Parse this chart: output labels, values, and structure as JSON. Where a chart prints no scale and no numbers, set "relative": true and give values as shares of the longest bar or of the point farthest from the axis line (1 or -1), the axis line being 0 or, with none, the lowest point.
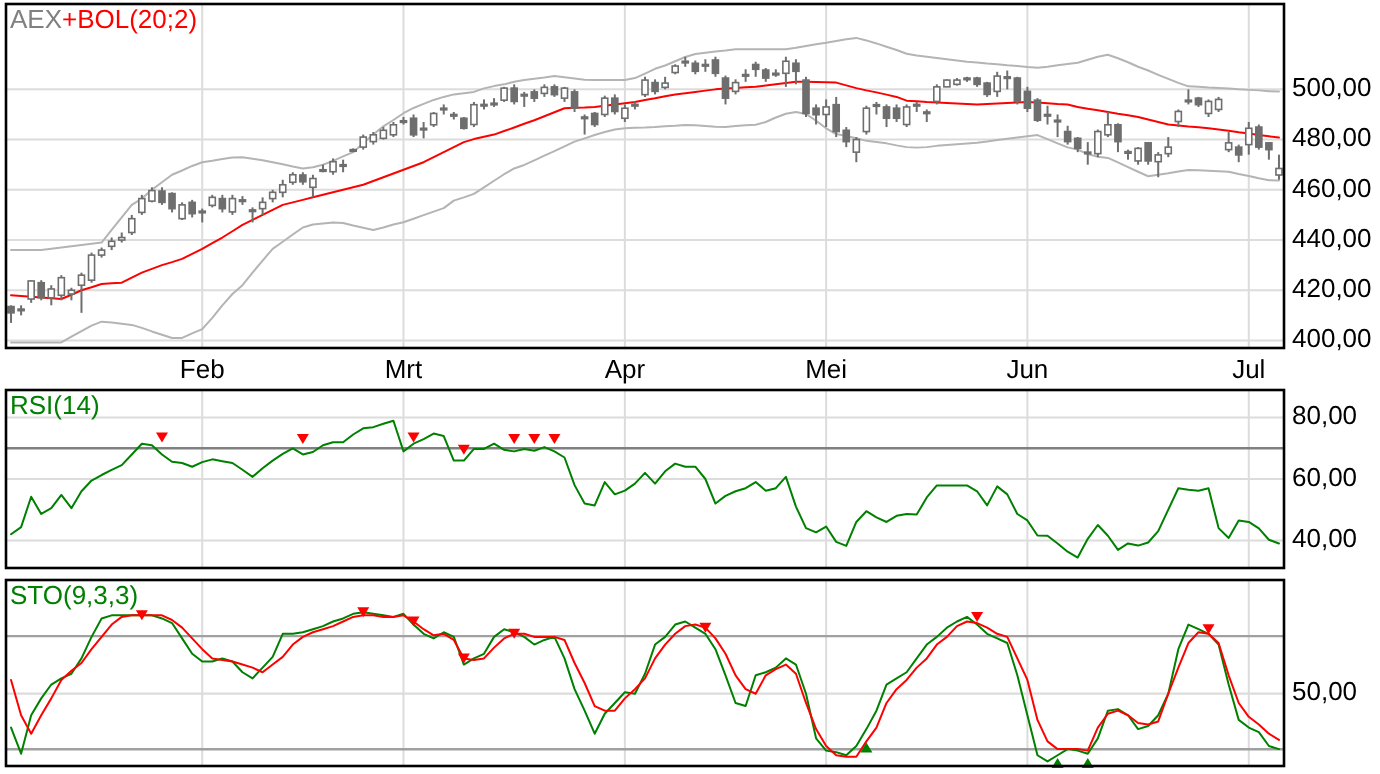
{
  "chart_data": [
    {
      "type": "candlestick",
      "title": "AEX",
      "legend": "top left",
      "grid": true,
      "categories": [
        null,
        null,
        null,
        null,
        null,
        null,
        null,
        null,
        null,
        null,
        null,
        null,
        null,
        null,
        null,
        null,
        null,
        null,
        null,
        "Feb",
        null,
        null,
        null,
        null,
        null,
        null,
        null,
        null,
        null,
        null,
        null,
        null,
        null,
        null,
        null,
        null,
        null,
        null,
        null,
        "Mrt",
        null,
        null,
        null,
        null,
        null,
        null,
        null,
        null,
        null,
        null,
        null,
        null,
        null,
        null,
        null,
        null,
        null,
        null,
        null,
        null,
        null,
        "Apr",
        null,
        null,
        null,
        null,
        null,
        null,
        null,
        null,
        null,
        null,
        null,
        null,
        null,
        null,
        null,
        null,
        null,
        null,
        null,
        "Mei",
        null,
        null,
        null,
        null,
        null,
        null,
        null,
        null,
        null,
        null,
        null,
        null,
        null,
        null,
        null,
        null,
        null,
        null,
        null,
        "Jun",
        null,
        null,
        null,
        null,
        null,
        null,
        null,
        null,
        null,
        null,
        null,
        null,
        null,
        null,
        null,
        null,
        null,
        null,
        null,
        null,
        null,
        "Jul",
        null,
        null,
        null
      ],
      "ylim": [
        397,
        534
      ],
      "yticks": [
        {
          "value": 400,
          "label": "400,00"
        },
        {
          "value": 420,
          "label": "420,00"
        },
        {
          "value": 440,
          "label": "440,00"
        },
        {
          "value": 460,
          "label": "460,00"
        },
        {
          "value": 480,
          "label": "480,00"
        },
        {
          "value": 500,
          "label": "500,00"
        }
      ],
      "ohlc": [
        [
          413.5,
          414,
          407,
          411
        ],
        [
          412,
          414,
          410,
          412.5
        ],
        [
          416.5,
          424,
          415,
          423.7
        ],
        [
          423,
          424,
          416,
          417
        ],
        [
          417,
          422,
          414,
          420.5
        ],
        [
          418,
          426,
          416,
          425
        ],
        [
          418.5,
          421,
          416,
          420
        ],
        [
          422,
          427,
          411,
          426
        ],
        [
          424,
          435,
          423,
          434
        ],
        [
          434,
          437,
          433,
          436
        ],
        [
          437.5,
          441,
          436,
          439.5
        ],
        [
          440,
          443,
          439,
          441
        ],
        [
          443,
          450,
          442,
          448.5
        ],
        [
          451,
          458,
          450,
          456.5
        ],
        [
          455.5,
          461,
          455,
          459.7
        ],
        [
          459.5,
          461,
          454,
          455
        ],
        [
          458.5,
          459,
          451,
          452.5
        ],
        [
          448.5,
          455,
          448,
          454
        ],
        [
          455,
          456,
          449,
          450.5
        ],
        [
          451,
          452.5,
          447,
          451.5
        ],
        [
          453.8,
          458,
          453,
          457
        ],
        [
          456.5,
          458,
          451,
          452.5
        ],
        [
          451.2,
          458,
          450,
          456.5
        ],
        [
          456,
          457.5,
          454,
          456
        ],
        [
          452,
          453,
          447,
          451.5
        ],
        [
          452.5,
          457,
          450,
          455
        ],
        [
          456.5,
          460,
          455,
          459
        ],
        [
          459,
          464,
          457,
          462
        ],
        [
          463,
          467,
          462,
          466
        ],
        [
          465.9,
          467,
          462,
          463.2
        ],
        [
          461,
          466,
          457,
          464.5
        ],
        [
          468,
          470,
          467,
          468
        ],
        [
          467.2,
          472.5,
          466,
          471.2
        ],
        [
          469.5,
          472,
          467,
          470
        ],
        [
          476,
          476.5,
          475,
          476
        ],
        [
          477,
          482,
          476,
          481
        ],
        [
          479.2,
          483,
          478,
          481.9
        ],
        [
          480.5,
          485,
          480,
          483.7
        ],
        [
          481.9,
          487,
          481,
          485.9
        ],
        [
          487,
          489,
          486,
          487.5
        ],
        [
          488.5,
          490,
          481,
          481.9
        ],
        [
          484.5,
          487,
          480.5,
          484.5
        ],
        [
          485.9,
          491,
          485,
          490.4
        ],
        [
          492.5,
          494,
          490,
          492.5
        ],
        [
          489.5,
          491,
          488,
          490
        ],
        [
          488.5,
          489,
          484,
          484.5
        ],
        [
          486,
          495,
          485,
          493.9
        ],
        [
          493.5,
          496,
          492,
          494
        ],
        [
          494.5,
          496.5,
          493,
          494.5
        ],
        [
          495.7,
          501,
          495,
          500.5
        ],
        [
          500.5,
          502,
          494,
          495.2
        ],
        [
          498,
          499,
          493,
          497.9
        ],
        [
          499,
          500,
          495,
          496.5
        ],
        [
          498.4,
          502,
          497,
          500.8
        ],
        [
          501,
          502,
          497,
          497.9
        ],
        [
          496.5,
          501,
          495,
          500.5
        ],
        [
          499,
          500,
          491,
          492.5
        ],
        [
          489,
          490,
          482,
          488.5
        ],
        [
          490.4,
          491,
          485,
          486
        ],
        [
          490,
          497.5,
          489,
          496.5
        ],
        [
          496.5,
          498,
          490,
          491.2
        ],
        [
          488.5,
          494,
          487,
          492.5
        ],
        [
          493.5,
          495,
          492,
          494
        ],
        [
          497.9,
          505,
          497,
          503.7
        ],
        [
          502.7,
          504,
          498,
          499.2
        ],
        [
          500.8,
          505,
          500,
          502.5
        ],
        [
          506.7,
          510,
          506,
          509.3
        ],
        [
          511,
          513,
          509,
          511.2
        ],
        [
          510.4,
          511.5,
          506,
          507.2
        ],
        [
          509.5,
          512,
          507,
          509.9
        ],
        [
          511.7,
          513,
          505,
          506.4
        ],
        [
          504.5,
          505.5,
          494,
          496.5
        ],
        [
          499.2,
          504,
          498,
          502.7
        ],
        [
          505.9,
          508,
          503,
          505.9
        ],
        [
          509.9,
          511,
          505,
          508
        ],
        [
          507.7,
          508.5,
          503,
          504.5
        ],
        [
          506.4,
          508,
          505,
          506.4
        ],
        [
          506.4,
          513,
          501,
          511.2
        ],
        [
          510.4,
          512,
          502,
          507.2
        ],
        [
          503.7,
          505,
          489,
          490.4
        ],
        [
          492.5,
          494,
          486,
          489.9
        ],
        [
          490,
          496,
          485,
          493
        ],
        [
          493.9,
          497,
          481,
          483.2
        ],
        [
          483.7,
          485,
          477,
          479.2
        ],
        [
          475,
          481,
          471,
          480
        ],
        [
          483.2,
          493.5,
          482,
          492.5
        ],
        [
          493.9,
          495,
          490,
          493.9
        ],
        [
          493,
          494,
          485,
          488.5
        ],
        [
          492.5,
          494,
          487,
          488.5
        ],
        [
          486,
          494,
          485,
          493
        ],
        [
          493.5,
          495,
          491,
          494
        ],
        [
          491,
          492,
          487,
          491
        ],
        [
          495.2,
          502,
          494,
          501
        ],
        [
          501,
          504,
          501,
          503.7
        ],
        [
          502,
          504.5,
          501.5,
          503.7
        ],
        [
          504,
          505,
          503,
          504.5
        ],
        [
          504.5,
          505,
          501,
          502
        ],
        [
          502.5,
          503,
          497,
          498
        ],
        [
          499.2,
          507,
          497,
          505.3
        ],
        [
          505,
          507.5,
          500,
          505
        ],
        [
          504.5,
          505,
          494,
          495.2
        ],
        [
          499.2,
          501,
          491,
          492.5
        ],
        [
          495.7,
          496.5,
          487,
          487.7
        ],
        [
          490,
          493.5,
          486,
          490
        ],
        [
          487.5,
          490,
          481,
          487.7
        ],
        [
          483.2,
          485.5,
          478,
          479.2
        ],
        [
          480.5,
          481,
          475,
          476.5
        ],
        [
          475,
          479,
          470,
          475
        ],
        [
          474.4,
          484,
          473,
          483.2
        ],
        [
          481.9,
          491,
          481,
          485.9
        ],
        [
          485.9,
          486.5,
          475,
          479.2
        ],
        [
          475.2,
          476,
          472,
          475.2
        ],
        [
          471.5,
          477,
          470,
          476.5
        ],
        [
          478.7,
          479,
          470,
          471.5
        ],
        [
          471.2,
          475,
          465,
          473.9
        ],
        [
          474.4,
          481,
          473,
          477
        ],
        [
          487.2,
          492,
          485,
          491.2
        ],
        [
          495.7,
          500,
          494,
          495.7
        ],
        [
          496.5,
          497,
          493,
          493.9
        ],
        [
          490.4,
          496,
          489,
          495.2
        ],
        [
          492,
          497,
          491,
          496
        ],
        [
          476,
          483,
          475,
          478.7
        ],
        [
          477,
          478,
          471,
          473.9
        ],
        [
          478,
          487,
          474,
          484.5
        ],
        [
          485,
          486,
          476,
          477
        ],
        [
          478.7,
          479,
          472,
          476
        ],
        [
          465.9,
          474,
          464,
          468.5
        ]
      ],
      "series": [
        {
          "type": "line",
          "color": "#b4b4b4",
          "values": [
            436,
            436,
            436,
            436,
            436.5,
            437,
            437.5,
            438,
            438.5,
            439,
            444,
            449,
            454,
            456.5,
            460,
            463,
            466,
            467.7,
            469.5,
            471,
            471.6,
            472.3,
            472.9,
            473,
            472.4,
            471.8,
            471,
            470.2,
            469.3,
            468.5,
            469,
            470,
            471.5,
            473.3,
            475,
            478.5,
            482,
            485.3,
            487.8,
            490.5,
            492.6,
            494.2,
            495.8,
            497,
            498,
            498.5,
            499,
            500.4,
            501.3,
            502,
            503,
            503.7,
            504.2,
            504.7,
            505.3,
            504.8,
            504.3,
            503.8,
            503.7,
            503.7,
            503.7,
            503.7,
            504.5,
            506.3,
            508.2,
            509.5,
            511.2,
            512.9,
            514.1,
            514.6,
            515.1,
            515.5,
            516,
            516,
            516,
            516,
            516,
            516,
            516.6,
            517.3,
            518,
            518.6,
            519.3,
            520,
            520.5,
            519.5,
            518.3,
            517,
            515.7,
            514.2,
            513.5,
            513,
            512.5,
            512,
            511.5,
            511,
            510.7,
            510.3,
            510,
            509.6,
            509.3,
            508.9,
            508.6,
            509,
            509.6,
            510.1,
            510.6,
            511.8,
            513,
            513.8,
            512.4,
            510.8,
            509,
            507.5,
            505.8,
            504.2,
            502.6,
            501.2,
            501,
            500.7,
            500.5,
            500.3,
            500,
            499.8,
            499.6,
            499.3,
            499.2
          ]
        },
        {
          "type": "line",
          "color": "#b4b4b4",
          "values": [
            399.2,
            399.2,
            399.2,
            399.2,
            399.2,
            399.2,
            401.5,
            403.7,
            405.9,
            407.5,
            407.2,
            406.7,
            406.2,
            405,
            403.6,
            402.3,
            401,
            401,
            402.8,
            404.5,
            409,
            414,
            418.5,
            422,
            427,
            431.8,
            436.5,
            439.3,
            442.2,
            445,
            446.2,
            446.6,
            447,
            446.8,
            445.8,
            444.9,
            444,
            445,
            446.2,
            447.1,
            448.5,
            449.9,
            451.3,
            452.7,
            455.7,
            457,
            458.4,
            461,
            463.6,
            466.2,
            468.5,
            469.9,
            471.7,
            473.6,
            475.4,
            477.3,
            479.2,
            480.5,
            481.8,
            483,
            484,
            484.5,
            484.7,
            484.8,
            485,
            485.3,
            485.5,
            485.8,
            485.7,
            485.4,
            485.1,
            485,
            485.4,
            485.7,
            485.9,
            487,
            488.8,
            490.3,
            491,
            490.2,
            487.5,
            484.5,
            482.2,
            481.4,
            480.5,
            479.5,
            479,
            478.5,
            477.7,
            477,
            476.8,
            477,
            477.5,
            477.8,
            478.1,
            478.4,
            478.7,
            479.2,
            479.8,
            480.3,
            480.8,
            481.3,
            481.8,
            480.2,
            478.5,
            476.9,
            476,
            474.2,
            473.2,
            472.7,
            470.9,
            469,
            467.2,
            465.4,
            466,
            466.6,
            467.3,
            467.9,
            467.8,
            467.6,
            467.4,
            467.2,
            466.3,
            465.5,
            464.6,
            463.8,
            463.7
          ]
        },
        {
          "type": "line",
          "name": "+BOL(20;2)",
          "color": "#ff0000",
          "values": [
            418,
            417.7,
            417.4,
            417.1,
            416.8,
            416.5,
            418.2,
            420,
            421.2,
            422.5,
            422.8,
            423,
            425,
            427,
            428.5,
            430,
            431.2,
            432.5,
            434.5,
            436.5,
            438.8,
            441,
            443.5,
            446,
            448,
            450,
            452,
            454,
            455,
            456,
            457,
            458,
            459,
            460,
            461,
            462,
            463.5,
            465,
            466.5,
            468,
            469.5,
            471,
            473,
            475,
            477,
            479,
            480.2,
            481.1,
            482,
            483.4,
            484.8,
            486.3,
            487.7,
            489.3,
            490.9,
            492.5,
            492.7,
            492.8,
            493,
            493.5,
            494,
            494.5,
            495,
            495.8,
            496.5,
            497.3,
            498,
            498.5,
            499,
            499.5,
            500,
            500.3,
            500.5,
            500.8,
            501,
            501.5,
            502,
            502.5,
            503,
            503,
            502.9,
            502.8,
            502.7,
            501.6,
            500.5,
            499.6,
            498.8,
            497.9,
            497,
            495.5,
            495.3,
            495,
            494.8,
            494.6,
            494.4,
            494.2,
            494,
            494.2,
            494.4,
            494.6,
            494.8,
            495,
            494.8,
            494.5,
            494.2,
            494,
            493,
            492.3,
            491.7,
            491,
            490.3,
            489.7,
            489,
            488,
            487,
            486,
            485.6,
            485.2,
            484.9,
            484.5,
            484,
            483.5,
            482.9,
            482.4,
            481.8,
            481.3,
            480.8
          ]
        }
      ]
    },
    {
      "type": "line",
      "legend": "top left",
      "grid": true,
      "ylim": [
        31,
        89
      ],
      "yticks": [
        {
          "value": 40,
          "label": "40,00"
        },
        {
          "value": 60,
          "label": "60,00"
        },
        {
          "value": 80,
          "label": "80,00"
        }
      ],
      "ref_lines": [
        {
          "axis": "y",
          "value": 70,
          "color": "#808080"
        }
      ],
      "series": [
        {
          "name": "RSI(14)",
          "color": "#008000",
          "values": [
            42,
            44.3,
            54.2,
            48.6,
            50.5,
            54.8,
            50.5,
            56,
            59.5,
            61.3,
            63,
            64.5,
            68,
            71.5,
            71,
            68,
            65.6,
            65.2,
            64,
            65.5,
            66.4,
            65.8,
            65.2,
            63,
            60.7,
            63.5,
            66,
            68.2,
            70,
            68,
            68.8,
            71,
            72,
            72,
            74.5,
            76.5,
            76.9,
            78,
            79,
            69,
            71.5,
            73,
            74.8,
            74,
            66,
            66,
            69.8,
            69.8,
            71.5,
            69.5,
            69,
            69.8,
            69.2,
            70.4,
            69,
            67,
            58,
            52,
            51.4,
            59,
            55,
            56.2,
            58.5,
            62,
            58.5,
            62.5,
            65,
            64,
            64,
            60,
            52,
            54.5,
            56,
            57,
            59,
            56.2,
            57,
            60.7,
            51,
            44,
            42.6,
            44.5,
            39.5,
            38.2,
            46,
            49.5,
            47.5,
            46,
            48,
            48.6,
            48.4,
            54,
            57.9,
            57.9,
            57.9,
            57.9,
            56,
            51.4,
            57.6,
            55,
            48.6,
            46.5,
            41.6,
            41.5,
            39,
            36.3,
            34.4,
            40.5,
            45,
            41.5,
            36.9,
            39,
            38.3,
            39.3,
            43,
            50,
            57,
            56.5,
            56.2,
            57,
            44,
            40.8,
            46.5,
            46,
            43.9,
            40.2,
            39
          ]
        },
        {
          "type": "scatter",
          "marker": "triangle",
          "color": "#ff0000",
          "values": [
            null,
            null,
            null,
            null,
            null,
            null,
            null,
            null,
            null,
            null,
            null,
            null,
            null,
            null,
            null,
            73.5,
            null,
            null,
            null,
            null,
            null,
            null,
            null,
            null,
            null,
            null,
            null,
            null,
            null,
            73,
            null,
            null,
            null,
            null,
            null,
            null,
            null,
            null,
            null,
            null,
            73.5,
            null,
            null,
            null,
            null,
            69.5,
            null,
            null,
            null,
            null,
            73,
            null,
            73,
            null,
            73,
            null,
            null,
            null,
            null,
            null,
            null,
            null,
            null,
            null,
            null,
            null,
            null,
            null,
            null,
            null,
            null,
            null,
            null,
            null,
            null,
            null,
            null,
            null,
            null,
            null,
            null,
            null,
            null,
            null,
            null,
            null,
            null,
            null,
            null,
            null,
            null,
            null,
            null,
            null,
            null,
            null,
            null,
            null,
            null,
            null,
            null,
            null,
            null,
            null,
            null,
            null,
            null,
            null,
            null,
            null,
            null,
            null,
            null,
            null,
            null,
            null,
            null,
            null,
            null,
            null,
            null,
            null,
            null,
            null,
            null,
            null,
            null
          ]
        }
      ]
    },
    {
      "type": "line",
      "relative": true,
      "legend": "top left",
      "grid": "x",
      "ref_lines": [
        {
          "axis": "y",
          "value": 0.845,
          "color": "#a0a0a0"
        },
        {
          "axis": "y",
          "value": 0.471,
          "color": "#dcdcdc"
        },
        {
          "axis": "y",
          "value": 0.109,
          "color": "#a0a0a0"
        }
      ],
      "annotations": [
        "50,00"
      ],
      "series": [
        {
          "name": "STO(9,3,3)",
          "color": "#008000",
          "values": [
            0.25,
            0.08,
            0.33,
            0.44,
            0.53,
            0.57,
            0.6,
            0.7,
            0.84,
            0.96,
            0.98,
            0.98,
            0.98,
            0.98,
            0.98,
            0.96,
            0.93,
            0.83,
            0.73,
            0.68,
            0.68,
            0.7,
            0.68,
            0.61,
            0.57,
            0.64,
            0.71,
            0.86,
            0.86,
            0.87,
            0.89,
            0.91,
            0.94,
            0.96,
            0.99,
            1,
            0.99,
            0.98,
            0.97,
            0.99,
            0.92,
            0.86,
            0.83,
            0.87,
            0.84,
            0.66,
            0.7,
            0.73,
            0.84,
            0.89,
            0.87,
            0.84,
            0.79,
            0.82,
            0.84,
            0.7,
            0.5,
            0.36,
            0.21,
            0.34,
            0.41,
            0.48,
            0.47,
            0.6,
            0.79,
            0.84,
            0.92,
            0.94,
            0.9,
            0.86,
            0.76,
            0.59,
            0.41,
            0.39,
            0.59,
            0.61,
            0.64,
            0.7,
            0.66,
            0.47,
            0.18,
            0.1,
            0.09,
            0.07,
            0.13,
            0.24,
            0.36,
            0.53,
            0.57,
            0.61,
            0.7,
            0.79,
            0.84,
            0.9,
            0.94,
            0.97,
            0.92,
            0.86,
            0.83,
            0.8,
            0.59,
            0.33,
            0.07,
            0.03,
            0.07,
            0.11,
            0.1,
            0.08,
            0.18,
            0.36,
            0.37,
            0.33,
            0.24,
            0.26,
            0.33,
            0.47,
            0.76,
            0.92,
            0.89,
            0.86,
            0.79,
            0.53,
            0.3,
            0.25,
            0.22,
            0.13,
            0.11
          ]
        },
        {
          "color": "#ff0000",
          "values": [
            0.56,
            0.33,
            0.21,
            0.33,
            0.44,
            0.56,
            0.62,
            0.67,
            0.76,
            0.84,
            0.92,
            0.97,
            0.98,
            0.98,
            0.98,
            0.98,
            0.95,
            0.9,
            0.83,
            0.76,
            0.7,
            0.69,
            0.68,
            0.66,
            0.64,
            0.61,
            0.66,
            0.71,
            0.79,
            0.84,
            0.87,
            0.89,
            0.91,
            0.94,
            0.97,
            0.98,
            0.98,
            0.97,
            0.97,
            0.98,
            0.94,
            0.89,
            0.85,
            0.86,
            0.82,
            0.7,
            0.69,
            0.7,
            0.77,
            0.83,
            0.86,
            0.86,
            0.84,
            0.84,
            0.84,
            0.82,
            0.67,
            0.54,
            0.39,
            0.36,
            0.36,
            0.44,
            0.5,
            0.57,
            0.7,
            0.79,
            0.86,
            0.91,
            0.92,
            0.9,
            0.83,
            0.73,
            0.59,
            0.5,
            0.47,
            0.59,
            0.63,
            0.66,
            0.6,
            0.41,
            0.24,
            0.13,
            0.07,
            0.06,
            0.06,
            0.16,
            0.25,
            0.41,
            0.5,
            0.56,
            0.64,
            0.7,
            0.79,
            0.84,
            0.91,
            0.94,
            0.93,
            0.9,
            0.86,
            0.84,
            0.7,
            0.56,
            0.3,
            0.16,
            0.11,
            0.11,
            0.11,
            0.1,
            0.25,
            0.34,
            0.36,
            0.33,
            0.28,
            0.27,
            0.29,
            0.47,
            0.64,
            0.8,
            0.87,
            0.86,
            0.8,
            0.59,
            0.41,
            0.32,
            0.27,
            0.21,
            0.17
          ]
        },
        {
          "type": "scatter",
          "marker": "triangle",
          "color": "#ff0000",
          "values": [
            null,
            null,
            null,
            null,
            null,
            null,
            null,
            null,
            null,
            null,
            null,
            null,
            null,
            0.98,
            null,
            null,
            null,
            null,
            null,
            null,
            null,
            null,
            null,
            null,
            null,
            null,
            null,
            null,
            null,
            null,
            null,
            null,
            null,
            null,
            null,
            1,
            null,
            null,
            null,
            null,
            0.94,
            null,
            null,
            null,
            null,
            0.7,
            null,
            null,
            null,
            null,
            0.86,
            null,
            null,
            null,
            null,
            null,
            null,
            null,
            null,
            null,
            null,
            null,
            null,
            null,
            null,
            null,
            null,
            null,
            null,
            0.9,
            null,
            null,
            null,
            null,
            null,
            null,
            null,
            null,
            null,
            null,
            null,
            null,
            null,
            null,
            null,
            null,
            null,
            null,
            null,
            null,
            null,
            null,
            null,
            null,
            null,
            null,
            0.97,
            null,
            null,
            null,
            null,
            null,
            null,
            null,
            null,
            null,
            null,
            null,
            null,
            null,
            null,
            null,
            null,
            null,
            null,
            null,
            null,
            null,
            null,
            0.89,
            null,
            null,
            null,
            null,
            null,
            null,
            null
          ]
        },
        {
          "type": "scatter",
          "marker": "triangle",
          "color": "#008000",
          "values": [
            null,
            null,
            null,
            null,
            null,
            null,
            null,
            null,
            null,
            null,
            null,
            null,
            null,
            null,
            null,
            null,
            null,
            null,
            null,
            null,
            null,
            null,
            null,
            null,
            null,
            null,
            null,
            null,
            null,
            null,
            null,
            null,
            null,
            null,
            null,
            null,
            null,
            null,
            null,
            null,
            null,
            null,
            null,
            null,
            null,
            null,
            null,
            null,
            null,
            null,
            null,
            null,
            null,
            null,
            null,
            null,
            null,
            null,
            null,
            null,
            null,
            null,
            null,
            null,
            null,
            null,
            null,
            null,
            null,
            null,
            null,
            null,
            null,
            null,
            null,
            null,
            null,
            null,
            null,
            null,
            null,
            null,
            null,
            null,
            null,
            0.12,
            null,
            null,
            null,
            null,
            null,
            null,
            null,
            null,
            null,
            null,
            null,
            null,
            null,
            null,
            null,
            null,
            null,
            null,
            0.02,
            null,
            null,
            0.02,
            null,
            null,
            null,
            null,
            null,
            null,
            null,
            null,
            null,
            null,
            null,
            null,
            null,
            null,
            null,
            null,
            null,
            null,
            null
          ]
        }
      ]
    }
  ]
}
